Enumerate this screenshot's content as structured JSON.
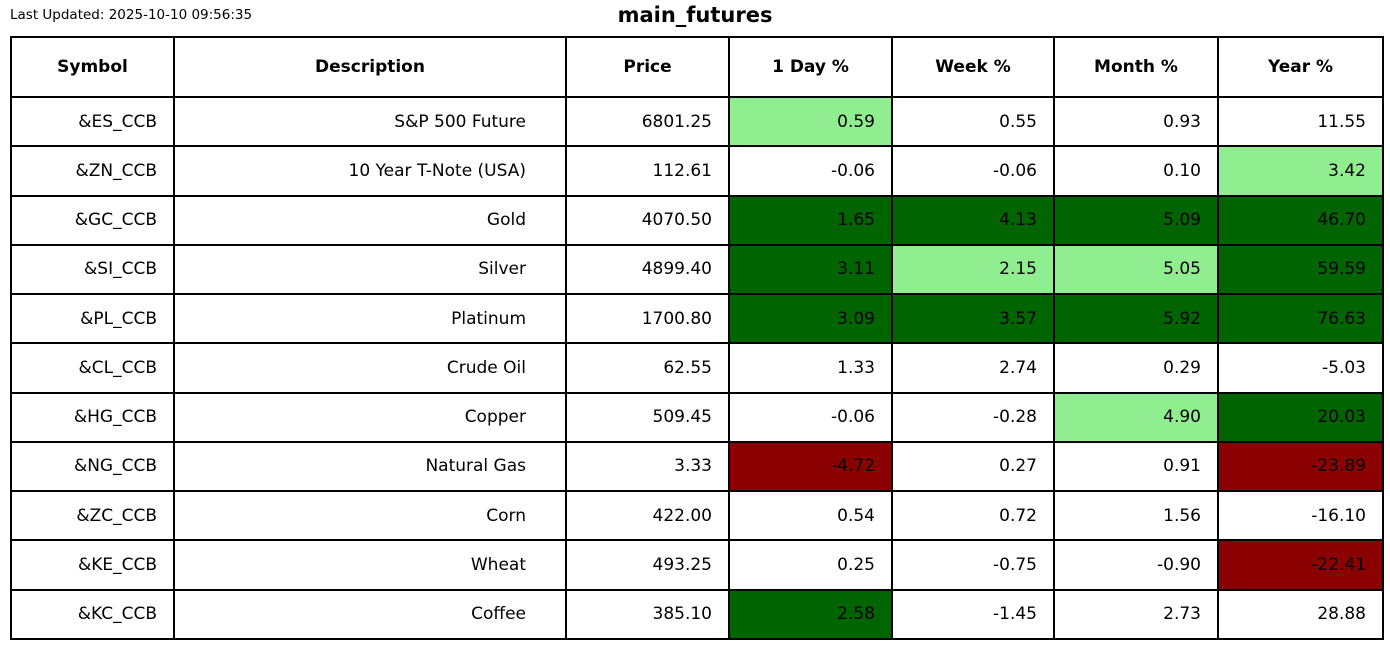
{
  "meta": {
    "last_updated": "Last Updated: 2025-10-10 09:56:35",
    "title": "main_futures"
  },
  "colors": {
    "white": "#FFFFFF",
    "light_green": "#90EE90",
    "dark_green": "#006400",
    "dark_red": "#8B0000",
    "border": "#000000",
    "text": "#000000"
  },
  "chart_data": {
    "type": "table",
    "title": "main_futures",
    "columns": [
      "Symbol",
      "Description",
      "Price",
      "1 Day %",
      "Week %",
      "Month %",
      "Year %"
    ],
    "rows": [
      {
        "symbol": "&ES_CCB",
        "description": "S&P 500 Future",
        "price": "6801.25",
        "pct": [
          {
            "value": "0.59",
            "bg": "light_green"
          },
          {
            "value": "0.55",
            "bg": "white"
          },
          {
            "value": "0.93",
            "bg": "white"
          },
          {
            "value": "11.55",
            "bg": "white"
          }
        ]
      },
      {
        "symbol": "&ZN_CCB",
        "description": "10 Year T-Note (USA)",
        "price": "112.61",
        "pct": [
          {
            "value": "-0.06",
            "bg": "white"
          },
          {
            "value": "-0.06",
            "bg": "white"
          },
          {
            "value": "0.10",
            "bg": "white"
          },
          {
            "value": "3.42",
            "bg": "light_green"
          }
        ]
      },
      {
        "symbol": "&GC_CCB",
        "description": "Gold",
        "price": "4070.50",
        "pct": [
          {
            "value": "1.65",
            "bg": "dark_green"
          },
          {
            "value": "4.13",
            "bg": "dark_green"
          },
          {
            "value": "5.09",
            "bg": "dark_green"
          },
          {
            "value": "46.70",
            "bg": "dark_green"
          }
        ]
      },
      {
        "symbol": "&SI_CCB",
        "description": "Silver",
        "price": "4899.40",
        "pct": [
          {
            "value": "3.11",
            "bg": "dark_green"
          },
          {
            "value": "2.15",
            "bg": "light_green"
          },
          {
            "value": "5.05",
            "bg": "light_green"
          },
          {
            "value": "59.59",
            "bg": "dark_green"
          }
        ]
      },
      {
        "symbol": "&PL_CCB",
        "description": "Platinum",
        "price": "1700.80",
        "pct": [
          {
            "value": "3.09",
            "bg": "dark_green"
          },
          {
            "value": "3.57",
            "bg": "dark_green"
          },
          {
            "value": "5.92",
            "bg": "dark_green"
          },
          {
            "value": "76.63",
            "bg": "dark_green"
          }
        ]
      },
      {
        "symbol": "&CL_CCB",
        "description": "Crude Oil",
        "price": "62.55",
        "pct": [
          {
            "value": "1.33",
            "bg": "white"
          },
          {
            "value": "2.74",
            "bg": "white"
          },
          {
            "value": "0.29",
            "bg": "white"
          },
          {
            "value": "-5.03",
            "bg": "white"
          }
        ]
      },
      {
        "symbol": "&HG_CCB",
        "description": "Copper",
        "price": "509.45",
        "pct": [
          {
            "value": "-0.06",
            "bg": "white"
          },
          {
            "value": "-0.28",
            "bg": "white"
          },
          {
            "value": "4.90",
            "bg": "light_green"
          },
          {
            "value": "20.03",
            "bg": "dark_green"
          }
        ]
      },
      {
        "symbol": "&NG_CCB",
        "description": "Natural Gas",
        "price": "3.33",
        "pct": [
          {
            "value": "-4.72",
            "bg": "dark_red"
          },
          {
            "value": "0.27",
            "bg": "white"
          },
          {
            "value": "0.91",
            "bg": "white"
          },
          {
            "value": "-23.89",
            "bg": "dark_red"
          }
        ]
      },
      {
        "symbol": "&ZC_CCB",
        "description": "Corn",
        "price": "422.00",
        "pct": [
          {
            "value": "0.54",
            "bg": "white"
          },
          {
            "value": "0.72",
            "bg": "white"
          },
          {
            "value": "1.56",
            "bg": "white"
          },
          {
            "value": "-16.10",
            "bg": "white"
          }
        ]
      },
      {
        "symbol": "&KE_CCB",
        "description": "Wheat",
        "price": "493.25",
        "pct": [
          {
            "value": "0.25",
            "bg": "white"
          },
          {
            "value": "-0.75",
            "bg": "white"
          },
          {
            "value": "-0.90",
            "bg": "white"
          },
          {
            "value": "-22.41",
            "bg": "dark_red"
          }
        ]
      },
      {
        "symbol": "&KC_CCB",
        "description": "Coffee",
        "price": "385.10",
        "pct": [
          {
            "value": "2.58",
            "bg": "dark_green"
          },
          {
            "value": "-1.45",
            "bg": "white"
          },
          {
            "value": "2.73",
            "bg": "white"
          },
          {
            "value": "28.88",
            "bg": "white"
          }
        ]
      }
    ]
  }
}
